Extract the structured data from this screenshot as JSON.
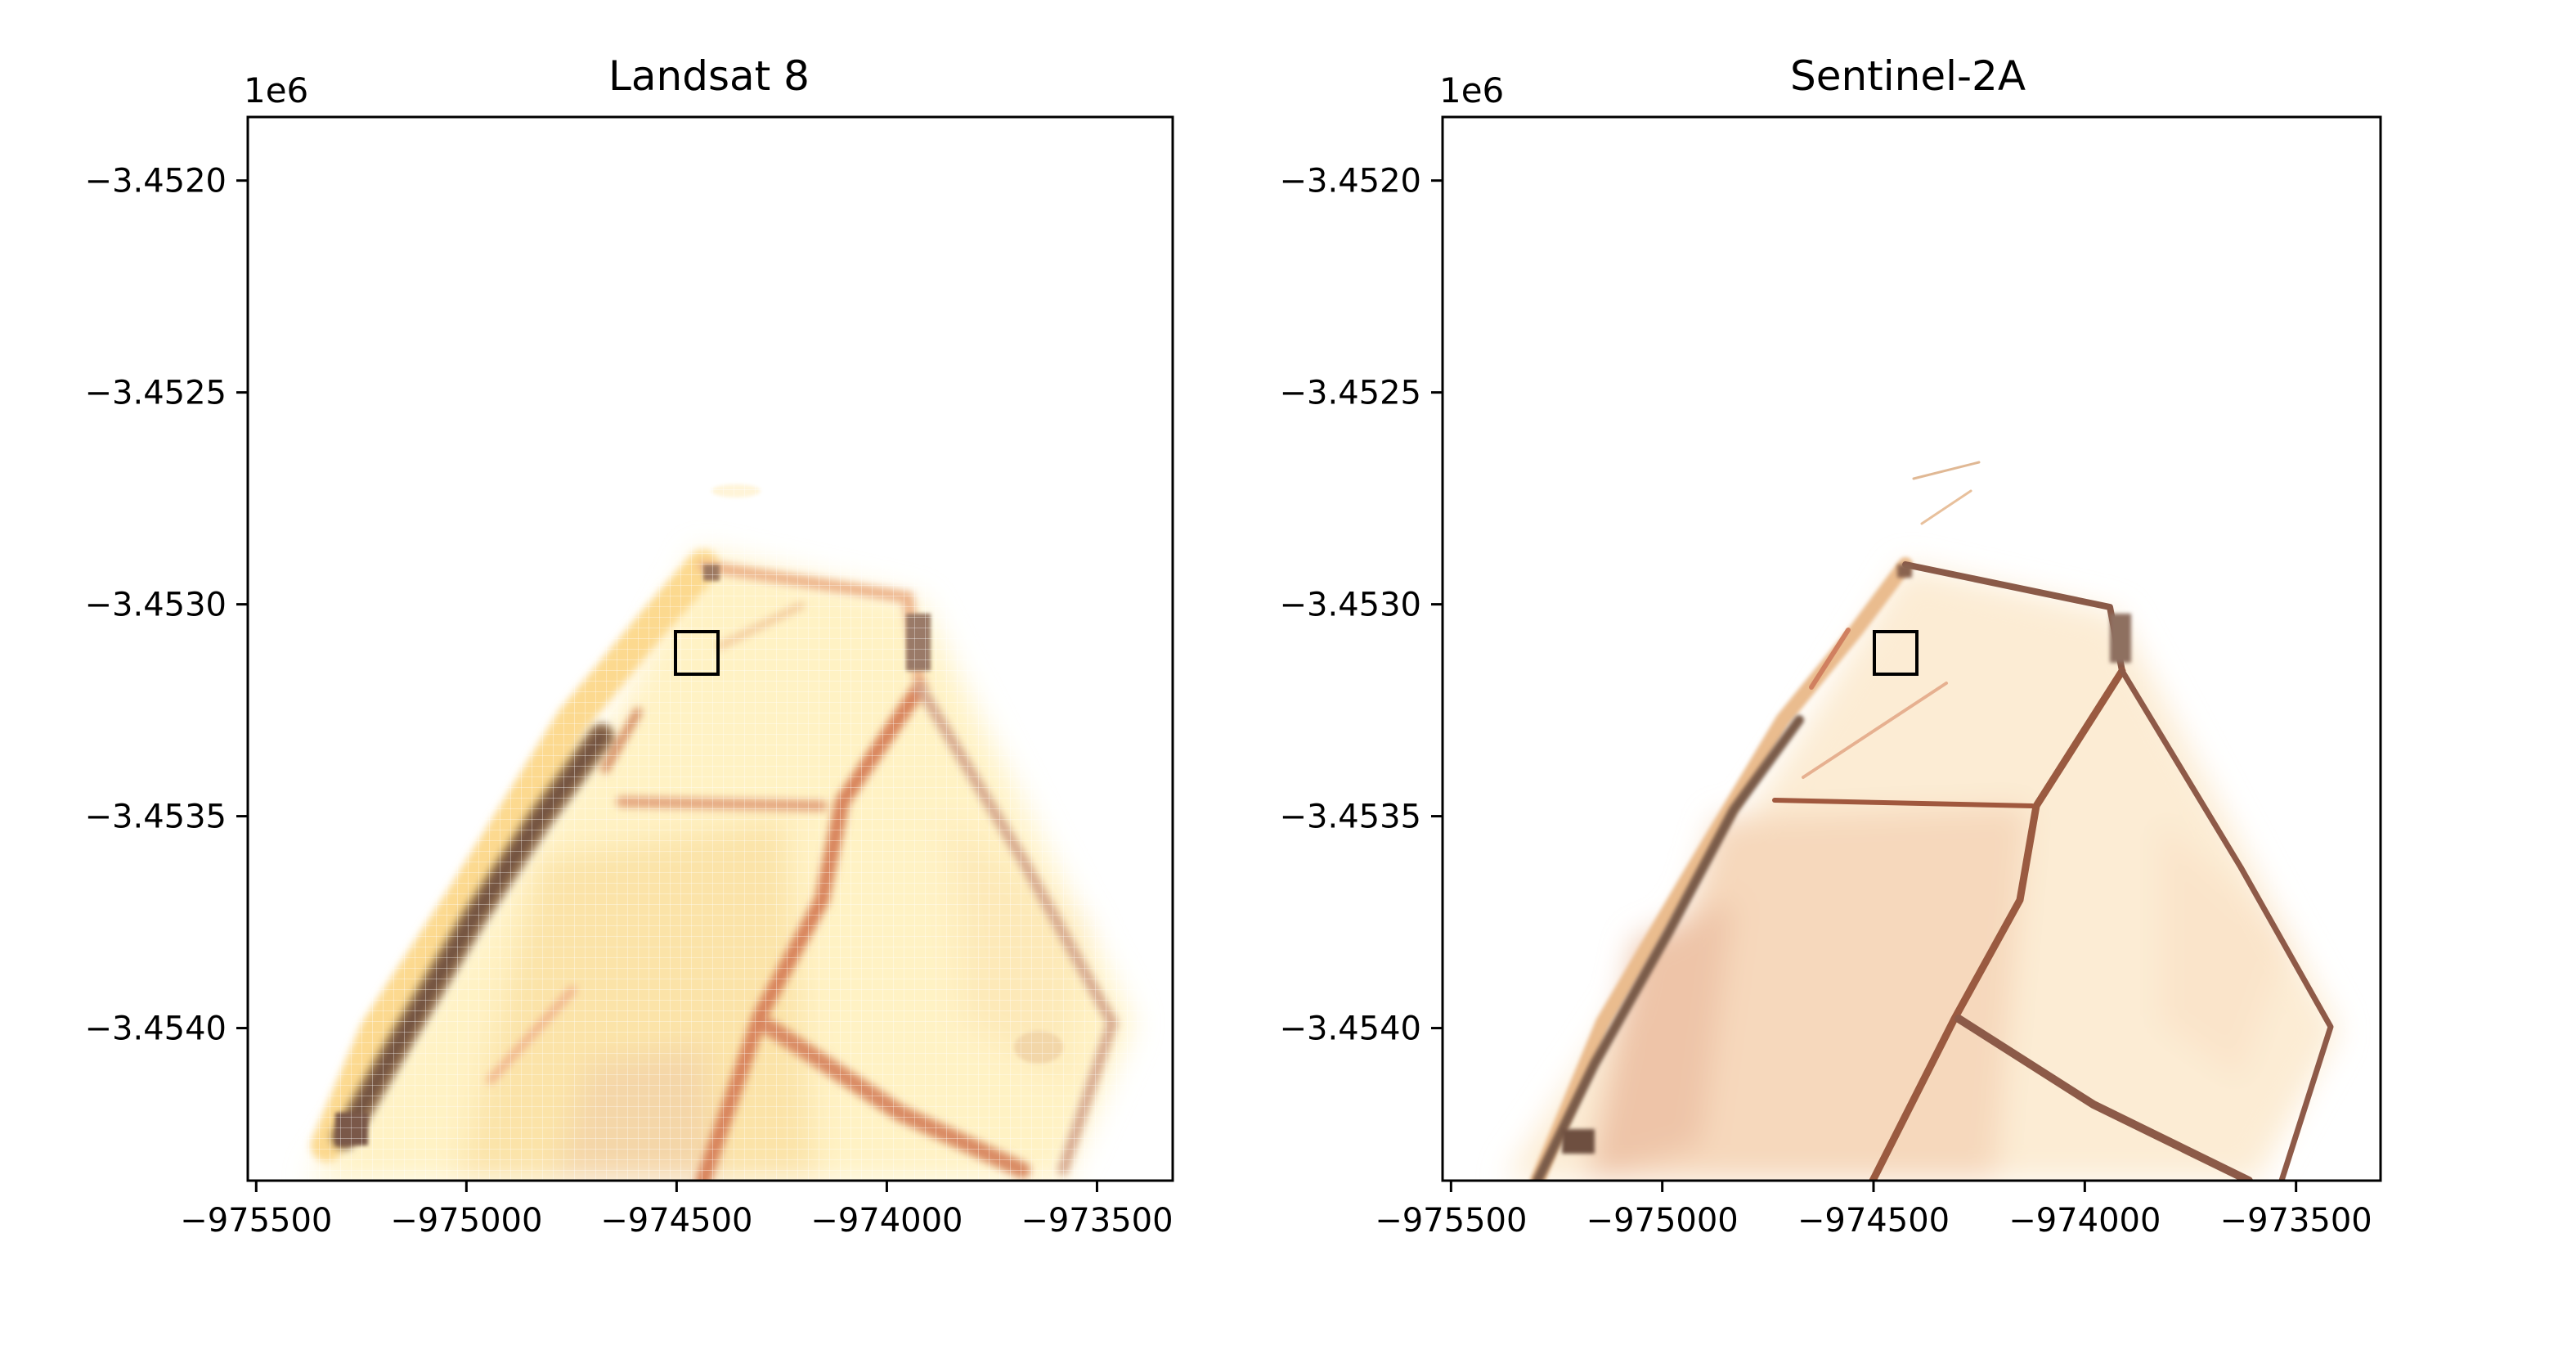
{
  "chart_data": [
    {
      "type": "raster",
      "title": "Landsat 8",
      "offset_text": "1e6",
      "xlim": [
        -975520,
        -973320
      ],
      "ylim": [
        -3454360,
        -3451850
      ],
      "xticks": [
        -975500,
        -975000,
        -974500,
        -974000,
        -973500
      ],
      "xtick_labels": [
        "−975500",
        "−975000",
        "−974500",
        "−974000",
        "−973500"
      ],
      "yticks": [
        -3452000,
        -3452500,
        -3453000,
        -3453500,
        -3454000
      ],
      "ytick_labels": [
        "−3.4520",
        "−3.4525",
        "−3.4530",
        "−3.4535",
        "−3.4540"
      ],
      "marker": {
        "shape": "square",
        "center_x": -974460,
        "center_y": -3453110,
        "size": 100
      },
      "image": "coarse-pixel (30 m) false-color scene of field boundaries",
      "colors": {
        "dark": "#8a5a3c",
        "mid": "#e0956a",
        "light": "#fff6d6",
        "bg": "#ffffff"
      }
    },
    {
      "type": "raster",
      "title": "Sentinel-2A",
      "offset_text": "1e6",
      "xlim": [
        -975520,
        -973300
      ],
      "ylim": [
        -3454360,
        -3451850
      ],
      "xticks": [
        -975500,
        -975000,
        -974500,
        -974000,
        -973500
      ],
      "xtick_labels": [
        "−975500",
        "−975000",
        "−974500",
        "−974000",
        "−973500"
      ],
      "yticks": [
        -3452000,
        -3452500,
        -3453000,
        -3453500,
        -3454000
      ],
      "ytick_labels": [
        "−3.4520",
        "−3.4525",
        "−3.4530",
        "−3.4535",
        "−3.4540"
      ],
      "marker": {
        "shape": "square",
        "center_x": -974460,
        "center_y": -3453110,
        "size": 100
      },
      "image": "finer-pixel (10 m) false-color scene of field boundaries",
      "colors": {
        "dark": "#7a5038",
        "mid": "#d07a52",
        "light": "#fdf0dc",
        "bg": "#ffffff"
      }
    }
  ]
}
